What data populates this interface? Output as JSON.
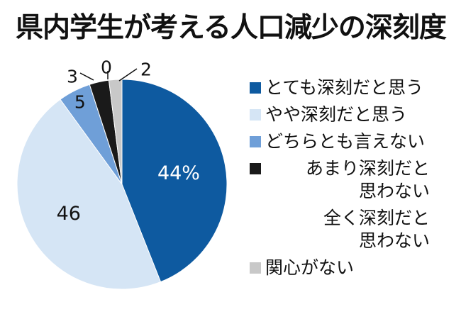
{
  "chart_data": {
    "type": "pie",
    "title": "県内学生が考える人口減少の深刻度",
    "unit_label": "%",
    "slices": [
      {
        "label": "とても深刻だと思う",
        "value": 44,
        "display": "44%",
        "color": "#0e5aa0"
      },
      {
        "label": "やや深刻だと思う",
        "value": 46,
        "display": "46",
        "color": "#d5e5f5"
      },
      {
        "label": "どちらとも言えない",
        "value": 5,
        "display": "5",
        "color": "#6f9fd8"
      },
      {
        "label": "あまり深刻だと\n思わない",
        "value": 3,
        "display": "3",
        "color": "#1a1a1a"
      },
      {
        "label": "全く深刻だと\n思わない",
        "value": 0,
        "display": "0",
        "color": "#ffffff"
      },
      {
        "label": "関心がない",
        "value": 2,
        "display": "2",
        "color": "#c8c8c8"
      }
    ],
    "legend_position": "right",
    "start_angle_deg": 0,
    "direction": "clockwise"
  }
}
